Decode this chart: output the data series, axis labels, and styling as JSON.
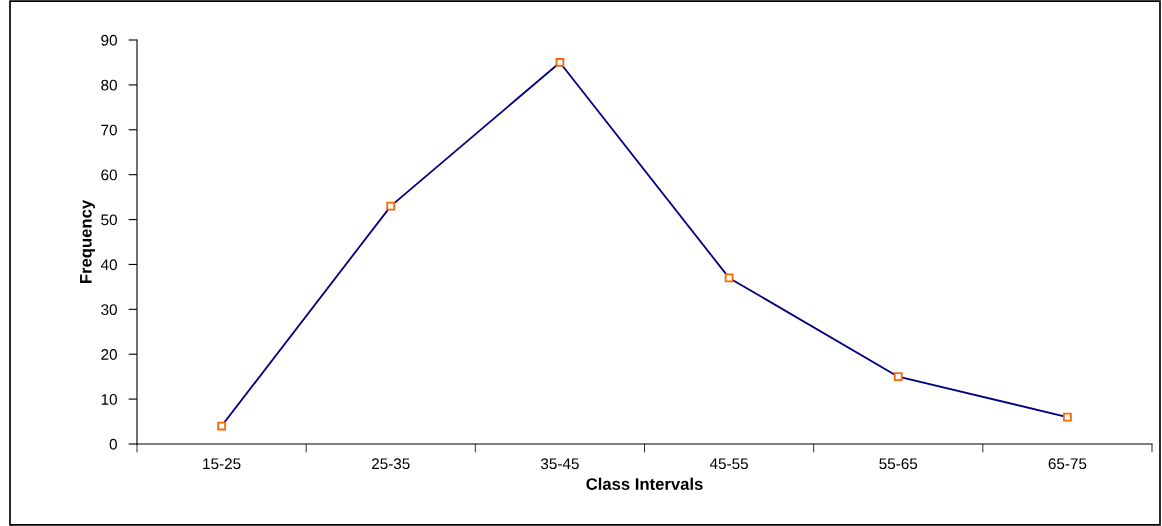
{
  "chart_data": {
    "type": "line",
    "xlabel": "Class Intervals",
    "ylabel": "Frequency",
    "categories": [
      "15-25",
      "25-35",
      "35-45",
      "45-55",
      "55-65",
      "65-75"
    ],
    "series": [
      {
        "color": "#000080",
        "values": [
          4,
          53,
          85,
          37,
          15,
          6
        ]
      }
    ],
    "ylim": [
      0,
      90
    ],
    "yticks": [
      0,
      10,
      20,
      30,
      40,
      50,
      60,
      70,
      80,
      90
    ],
    "marker": "square",
    "line_style": "solid",
    "grid": false,
    "legend": false
  }
}
